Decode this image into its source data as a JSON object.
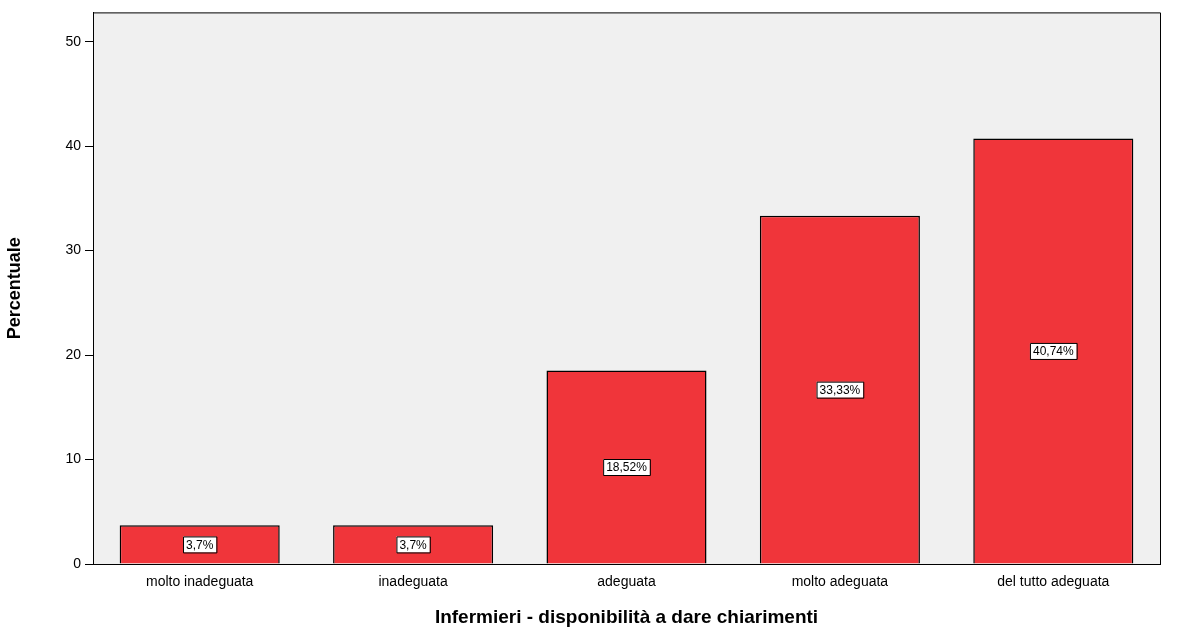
{
  "chart_data": {
    "type": "bar",
    "xlabel": "Infermieri - disponibilità a dare chiarimenti",
    "ylabel": "Percentuale",
    "categories": [
      "molto inadeguata",
      "inadeguata",
      "adeguata",
      "molto adeguata",
      "del tutto adeguata"
    ],
    "values": [
      3.7,
      3.7,
      18.52,
      33.33,
      40.74
    ],
    "value_labels": [
      "3,7%",
      "3,7%",
      "18,52%",
      "33,33%",
      "40,74%"
    ],
    "color": "#f0353a",
    "ylim": [
      0,
      52.8
    ],
    "yticks": [
      0,
      10,
      20,
      30,
      40,
      50
    ],
    "grid": false,
    "legend": false
  }
}
